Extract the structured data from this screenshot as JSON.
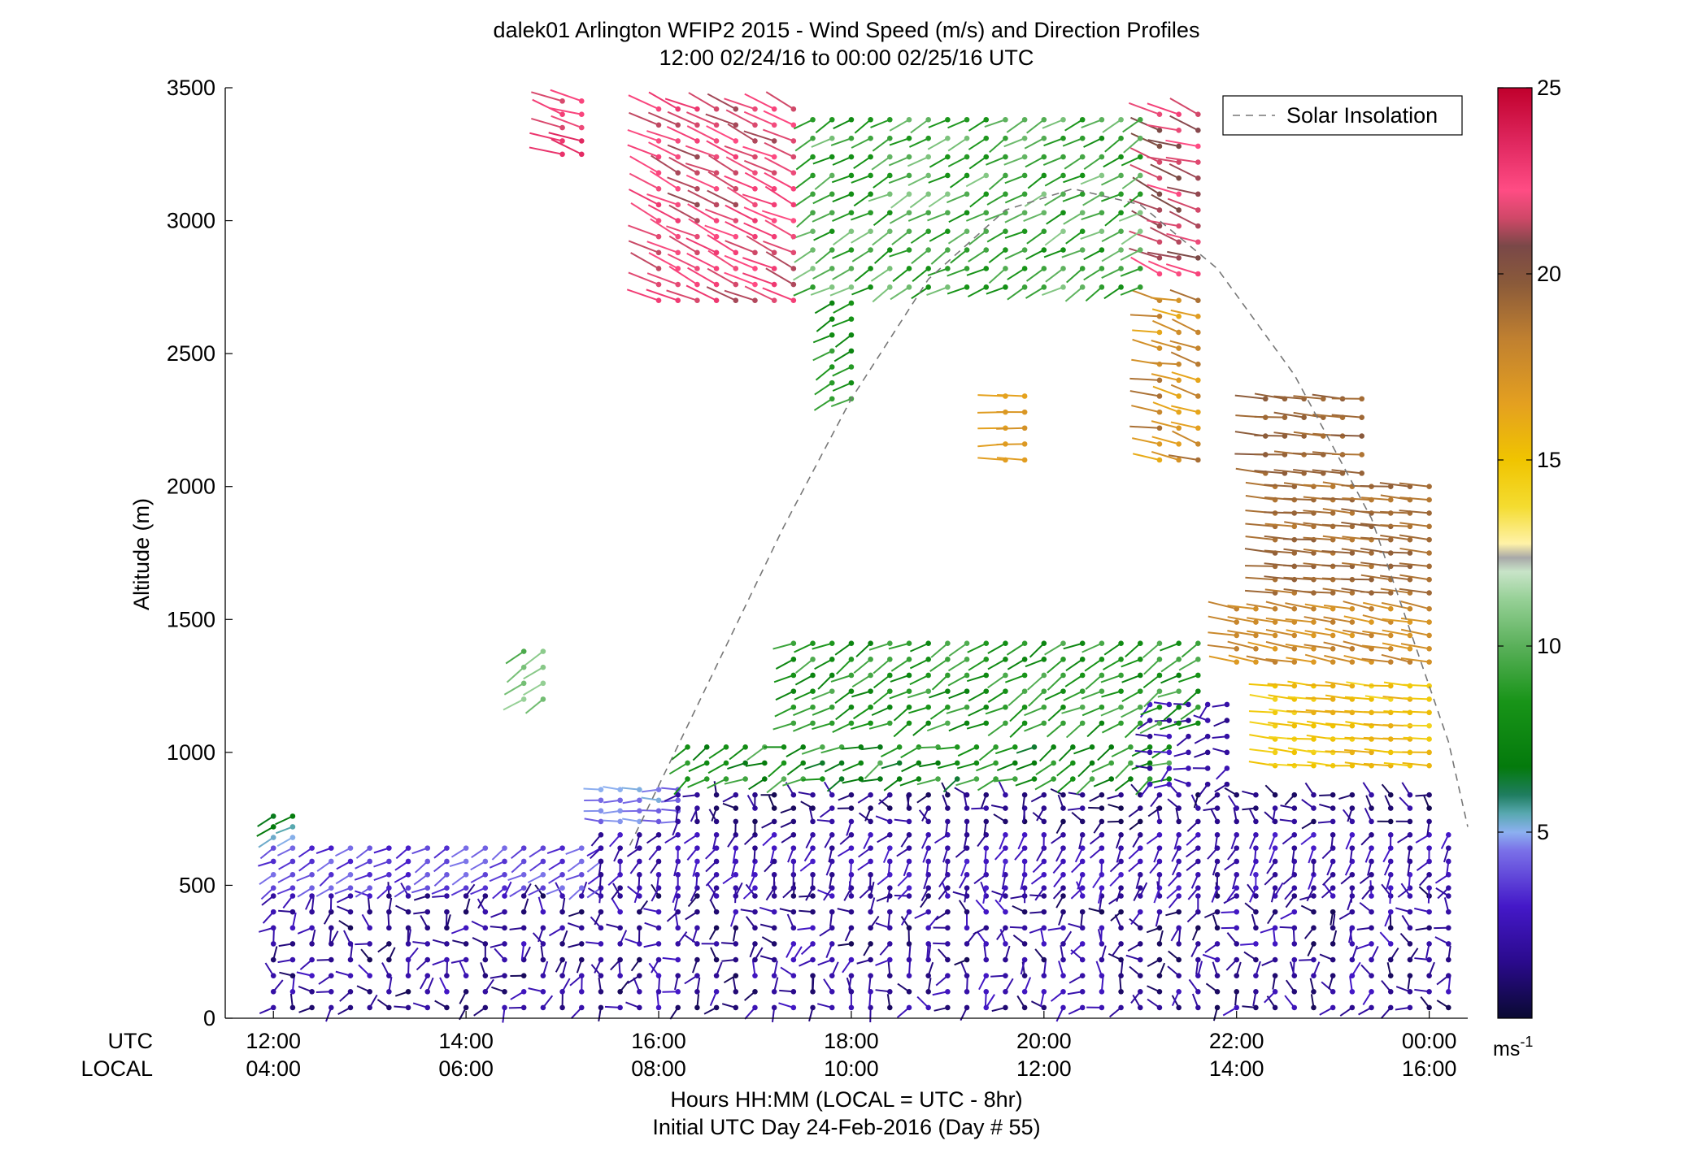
{
  "chart_data": {
    "type": "wind_barb_profile",
    "title": "dalek01 Arlington WFIP2 2015 - Wind Speed (m/s) and Direction Profiles",
    "subtitle": "12:00 02/24/16 to 00:00 02/25/16  UTC",
    "ylabel": "Altitude (m)",
    "xlabel": "Hours HH:MM  (LOCAL = UTC - 8hr)",
    "xlabel2": "Initial UTC Day 24-Feb-2016 (Day # 55)",
    "row_label_utc": "UTC",
    "row_label_local": "LOCAL",
    "ylim": [
      0,
      3500
    ],
    "xlim_hours": [
      11.5,
      24.4
    ],
    "y_ticks": [
      "0",
      "500",
      "1000",
      "1500",
      "2000",
      "2500",
      "3000",
      "3500"
    ],
    "x_ticks_utc": [
      "12:00",
      "14:00",
      "16:00",
      "18:00",
      "20:00",
      "22:00",
      "00:00"
    ],
    "x_ticks_local": [
      "04:00",
      "06:00",
      "08:00",
      "10:00",
      "12:00",
      "14:00",
      "16:00"
    ],
    "legend": [
      "Solar Insolation"
    ],
    "legend_position": "top-right",
    "colorbar": {
      "ticks": [
        "25",
        "20",
        "15",
        "10",
        "5"
      ],
      "unit": "ms",
      "unit_exp": "-1",
      "range": [
        0,
        25
      ]
    },
    "solar_insolation": {
      "hours": [
        15.7,
        16.5,
        17.3,
        18.0,
        18.8,
        19.6,
        20.3,
        21.0,
        21.8,
        22.6,
        23.4,
        24.2,
        24.4
      ],
      "altitude": [
        650,
        1250,
        1850,
        2330,
        2780,
        3040,
        3120,
        3060,
        2820,
        2420,
        1880,
        1040,
        720
      ]
    },
    "wind_profiles": [
      {
        "x_start": 12.0,
        "x_end": 24.2,
        "x_step": 0.2,
        "alt_start": 40,
        "alt_end": 460,
        "alt_step": 60,
        "speed": 1.8,
        "speed_var": 1.2,
        "dir": 290,
        "dir_var": 110
      },
      {
        "x_start": 12.0,
        "x_end": 15.4,
        "x_step": 0.2,
        "alt_start": 490,
        "alt_end": 650,
        "alt_step": 50,
        "speed": 3.8,
        "speed_var": 0.8,
        "dir": 240,
        "dir_var": 15
      },
      {
        "x_start": 12.0,
        "x_end": 12.3,
        "x_step": 0.2,
        "alt_start": 680,
        "alt_end": 780,
        "alt_step": 40,
        "speed": 6.0,
        "speed_var": 1.0,
        "dir": 240,
        "dir_var": 10
      },
      {
        "x_start": 15.4,
        "x_end": 24.2,
        "x_step": 0.2,
        "alt_start": 490,
        "alt_end": 700,
        "alt_step": 50,
        "speed": 2.3,
        "speed_var": 0.9,
        "dir": 210,
        "dir_var": 30
      },
      {
        "x_start": 15.4,
        "x_end": 16.2,
        "x_step": 0.2,
        "alt_start": 740,
        "alt_end": 860,
        "alt_step": 40,
        "speed": 4.6,
        "speed_var": 0.6,
        "dir": 270,
        "dir_var": 10
      },
      {
        "x_start": 16.2,
        "x_end": 24.0,
        "x_step": 0.2,
        "alt_start": 740,
        "alt_end": 880,
        "alt_step": 50,
        "speed": 1.4,
        "speed_var": 0.9,
        "dir": 270,
        "dir_var": 90
      },
      {
        "x_start": 16.3,
        "x_end": 21.4,
        "x_step": 0.2,
        "alt_start": 900,
        "alt_end": 1060,
        "alt_step": 60,
        "speed": 8.2,
        "speed_var": 1.8,
        "dir": 245,
        "dir_var": 25
      },
      {
        "x_start": 21.1,
        "x_end": 22.0,
        "x_step": 0.2,
        "alt_start": 880,
        "alt_end": 1200,
        "alt_step": 60,
        "speed": 2.3,
        "speed_var": 0.8,
        "dir": 250,
        "dir_var": 40
      },
      {
        "x_start": 17.4,
        "x_end": 21.7,
        "x_step": 0.2,
        "alt_start": 1110,
        "alt_end": 1450,
        "alt_step": 60,
        "speed": 8.6,
        "speed_var": 1.3,
        "dir": 240,
        "dir_var": 15
      },
      {
        "x_start": 14.6,
        "x_end": 14.9,
        "x_step": 0.2,
        "alt_start": 1200,
        "alt_end": 1400,
        "alt_step": 60,
        "speed": 10.5,
        "speed_var": 1.0,
        "dir": 235,
        "dir_var": 8
      },
      {
        "x_start": 22.4,
        "x_end": 24.0,
        "x_step": 0.2,
        "alt_start": 950,
        "alt_end": 1290,
        "alt_step": 50,
        "speed": 15.0,
        "speed_var": 1.0,
        "dir": 275,
        "dir_var": 5
      },
      {
        "x_start": 22.0,
        "x_end": 24.0,
        "x_step": 0.2,
        "alt_start": 1340,
        "alt_end": 1560,
        "alt_step": 50,
        "speed": 17.5,
        "speed_var": 0.8,
        "dir": 280,
        "dir_var": 5
      },
      {
        "x_start": 22.4,
        "x_end": 24.0,
        "x_step": 0.2,
        "alt_start": 1600,
        "alt_end": 2000,
        "alt_step": 50,
        "speed": 19.0,
        "speed_var": 0.6,
        "dir": 275,
        "dir_var": 4
      },
      {
        "x_start": 22.3,
        "x_end": 23.4,
        "x_step": 0.2,
        "alt_start": 2050,
        "alt_end": 2350,
        "alt_step": 70,
        "speed": 19.3,
        "speed_var": 0.6,
        "dir": 275,
        "dir_var": 5
      },
      {
        "x_start": 21.2,
        "x_end": 21.7,
        "x_step": 0.2,
        "alt_start": 2100,
        "alt_end": 2750,
        "alt_step": 60,
        "speed": 17.5,
        "speed_var": 1.5,
        "dir": 285,
        "dir_var": 12
      },
      {
        "x_start": 21.2,
        "x_end": 21.7,
        "x_step": 0.2,
        "alt_start": 2800,
        "alt_end": 3450,
        "alt_step": 60,
        "speed": 21.5,
        "speed_var": 1.3,
        "dir": 290,
        "dir_var": 12
      },
      {
        "x_start": 19.6,
        "x_end": 19.8,
        "x_step": 0.2,
        "alt_start": 2100,
        "alt_end": 2360,
        "alt_step": 60,
        "speed": 16.5,
        "speed_var": 0.8,
        "dir": 270,
        "dir_var": 5
      },
      {
        "x_start": 17.6,
        "x_end": 21.0,
        "x_step": 0.2,
        "alt_start": 2750,
        "alt_end": 3420,
        "alt_step": 70,
        "speed": 9.5,
        "speed_var": 1.5,
        "dir": 240,
        "dir_var": 12
      },
      {
        "x_start": 17.8,
        "x_end": 18.0,
        "x_step": 0.2,
        "alt_start": 2330,
        "alt_end": 2700,
        "alt_step": 60,
        "speed": 8.5,
        "speed_var": 1.2,
        "dir": 240,
        "dir_var": 10
      },
      {
        "x_start": 16.0,
        "x_end": 17.4,
        "x_step": 0.2,
        "alt_start": 2700,
        "alt_end": 3450,
        "alt_step": 60,
        "speed": 22.0,
        "speed_var": 1.0,
        "dir": 295,
        "dir_var": 8
      },
      {
        "x_start": 15.0,
        "x_end": 15.2,
        "x_step": 0.2,
        "alt_start": 3250,
        "alt_end": 3450,
        "alt_step": 50,
        "speed": 22.5,
        "speed_var": 1.0,
        "dir": 290,
        "dir_var": 10
      }
    ]
  }
}
